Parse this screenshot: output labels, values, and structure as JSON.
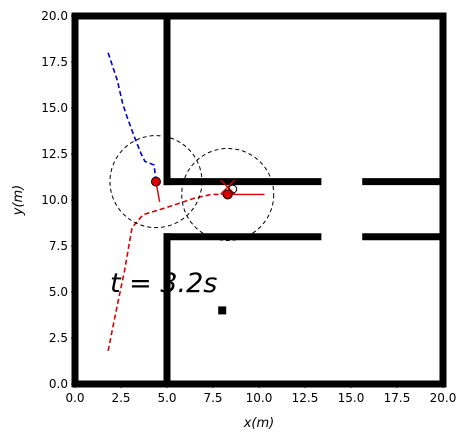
{
  "chart_data": {
    "type": "line",
    "xlabel": "x(m)",
    "ylabel": "y(m)",
    "xlim": [
      0,
      20
    ],
    "ylim": [
      0,
      20
    ],
    "xticks": [
      0.0,
      2.5,
      5.0,
      7.5,
      10.0,
      12.5,
      15.0,
      17.5,
      20.0
    ],
    "yticks": [
      0.0,
      2.5,
      5.0,
      7.5,
      10.0,
      12.5,
      15.0,
      17.5,
      20.0
    ],
    "xtick_labels": [
      "0.0",
      "2.5",
      "5.0",
      "7.5",
      "10.0",
      "12.5",
      "15.0",
      "17.5",
      "20.0"
    ],
    "ytick_labels": [
      "0.0",
      "2.5",
      "5.0",
      "7.5",
      "10.0",
      "12.5",
      "15.0",
      "17.5",
      "20.0"
    ],
    "time_text": "t = 3.2s",
    "walls": [
      {
        "x": [
          0,
          20
        ],
        "y": [
          20,
          20
        ]
      },
      {
        "x": [
          0,
          20
        ],
        "y": [
          0,
          0
        ]
      },
      {
        "x": [
          0,
          0
        ],
        "y": [
          0,
          20
        ]
      },
      {
        "x": [
          20,
          20
        ],
        "y": [
          0,
          20
        ]
      },
      {
        "x": [
          5,
          5
        ],
        "y": [
          11,
          20
        ]
      },
      {
        "x": [
          5,
          5
        ],
        "y": [
          0,
          8
        ]
      },
      {
        "x": [
          5,
          13.2
        ],
        "y": [
          11,
          11
        ]
      },
      {
        "x": [
          5,
          13.2
        ],
        "y": [
          8,
          8
        ]
      },
      {
        "x": [
          15.8,
          20
        ],
        "y": [
          11,
          11
        ]
      },
      {
        "x": [
          15.8,
          20
        ],
        "y": [
          8,
          8
        ]
      }
    ],
    "obstacle": {
      "x": 8,
      "y": 4
    },
    "series": [
      {
        "color": "#0000cc",
        "style": "dashed",
        "x": [
          1.8,
          2.3,
          2.6,
          2.8,
          3.2,
          3.6,
          3.8,
          4.3,
          4.4
        ],
        "y": [
          18.0,
          16.5,
          15.2,
          14.6,
          13.5,
          12.5,
          12.1,
          11.9,
          11.0
        ]
      },
      {
        "color": "#dd0000",
        "style": "dashed",
        "x": [
          1.8,
          2.2,
          2.7,
          3.1,
          3.7,
          5.0,
          6.5,
          7.4,
          8.3
        ],
        "y": [
          1.8,
          3.8,
          6.2,
          8.5,
          9.2,
          9.6,
          10.1,
          10.3,
          10.3
        ]
      }
    ],
    "agents": [
      {
        "position": {
          "x": 4.4,
          "y": 11.0
        },
        "radius_circle": 2.5,
        "heading": {
          "x": [
            4.4,
            4.6
          ],
          "y": [
            11.0,
            9.9
          ]
        },
        "color": "#dd0000"
      },
      {
        "position": {
          "x": 8.3,
          "y": 10.3
        },
        "radius_circle": 2.5,
        "heading": {
          "x": [
            8.3,
            10.3
          ],
          "y": [
            10.3,
            10.3
          ]
        },
        "color": "#dd0000"
      }
    ],
    "goal_marker": {
      "x": 8.3,
      "y": 10.7,
      "color": "#dd0000"
    }
  }
}
